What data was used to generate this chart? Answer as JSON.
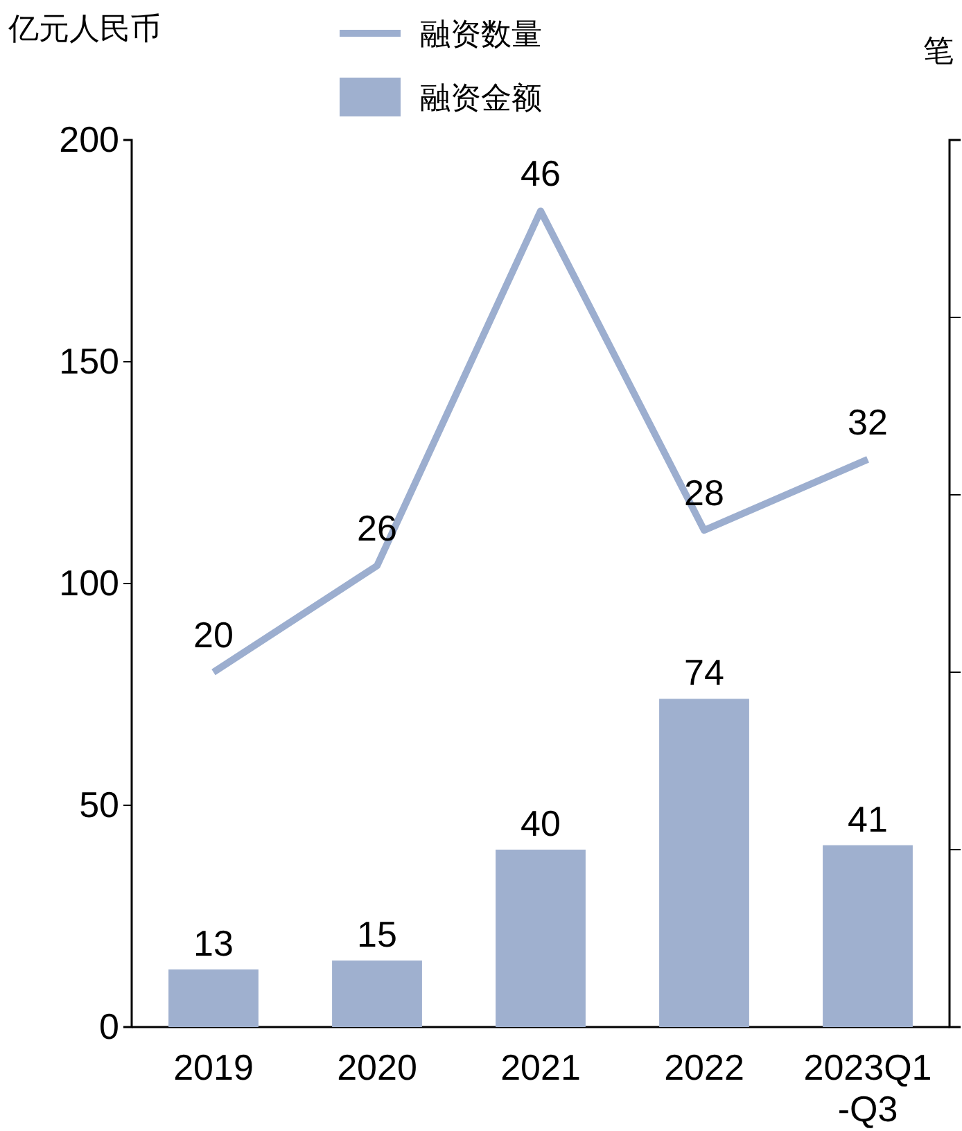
{
  "chart_data": {
    "type": "bar",
    "ylabel": "亿元人民币",
    "y2label": "笔",
    "categories": [
      "2019",
      "2020",
      "2021",
      "2022",
      "2023Q1-Q3"
    ],
    "series": [
      {
        "name": "融资数量",
        "type": "line",
        "axis": "y2",
        "color": "#9caecf",
        "values": [
          20,
          26,
          46,
          28,
          32
        ]
      },
      {
        "name": "融资金额",
        "color": "#9fb0cf",
        "values": [
          13,
          15,
          40,
          74,
          41
        ]
      }
    ],
    "ylim": [
      0,
      200
    ],
    "yticks": [
      0,
      50,
      100,
      150,
      200
    ],
    "y2lim": [
      0,
      50
    ],
    "y2ticks": [
      {
        "value": 0,
        "label": null
      },
      {
        "value": 10,
        "label": null
      },
      {
        "value": 20,
        "label": null
      },
      {
        "value": 30,
        "label": null
      },
      {
        "value": 40,
        "label": null
      },
      {
        "value": 50,
        "label": null
      }
    ],
    "data_labels": true,
    "legend": "top",
    "grid": false,
    "marker": "none",
    "line_style": "solid"
  }
}
